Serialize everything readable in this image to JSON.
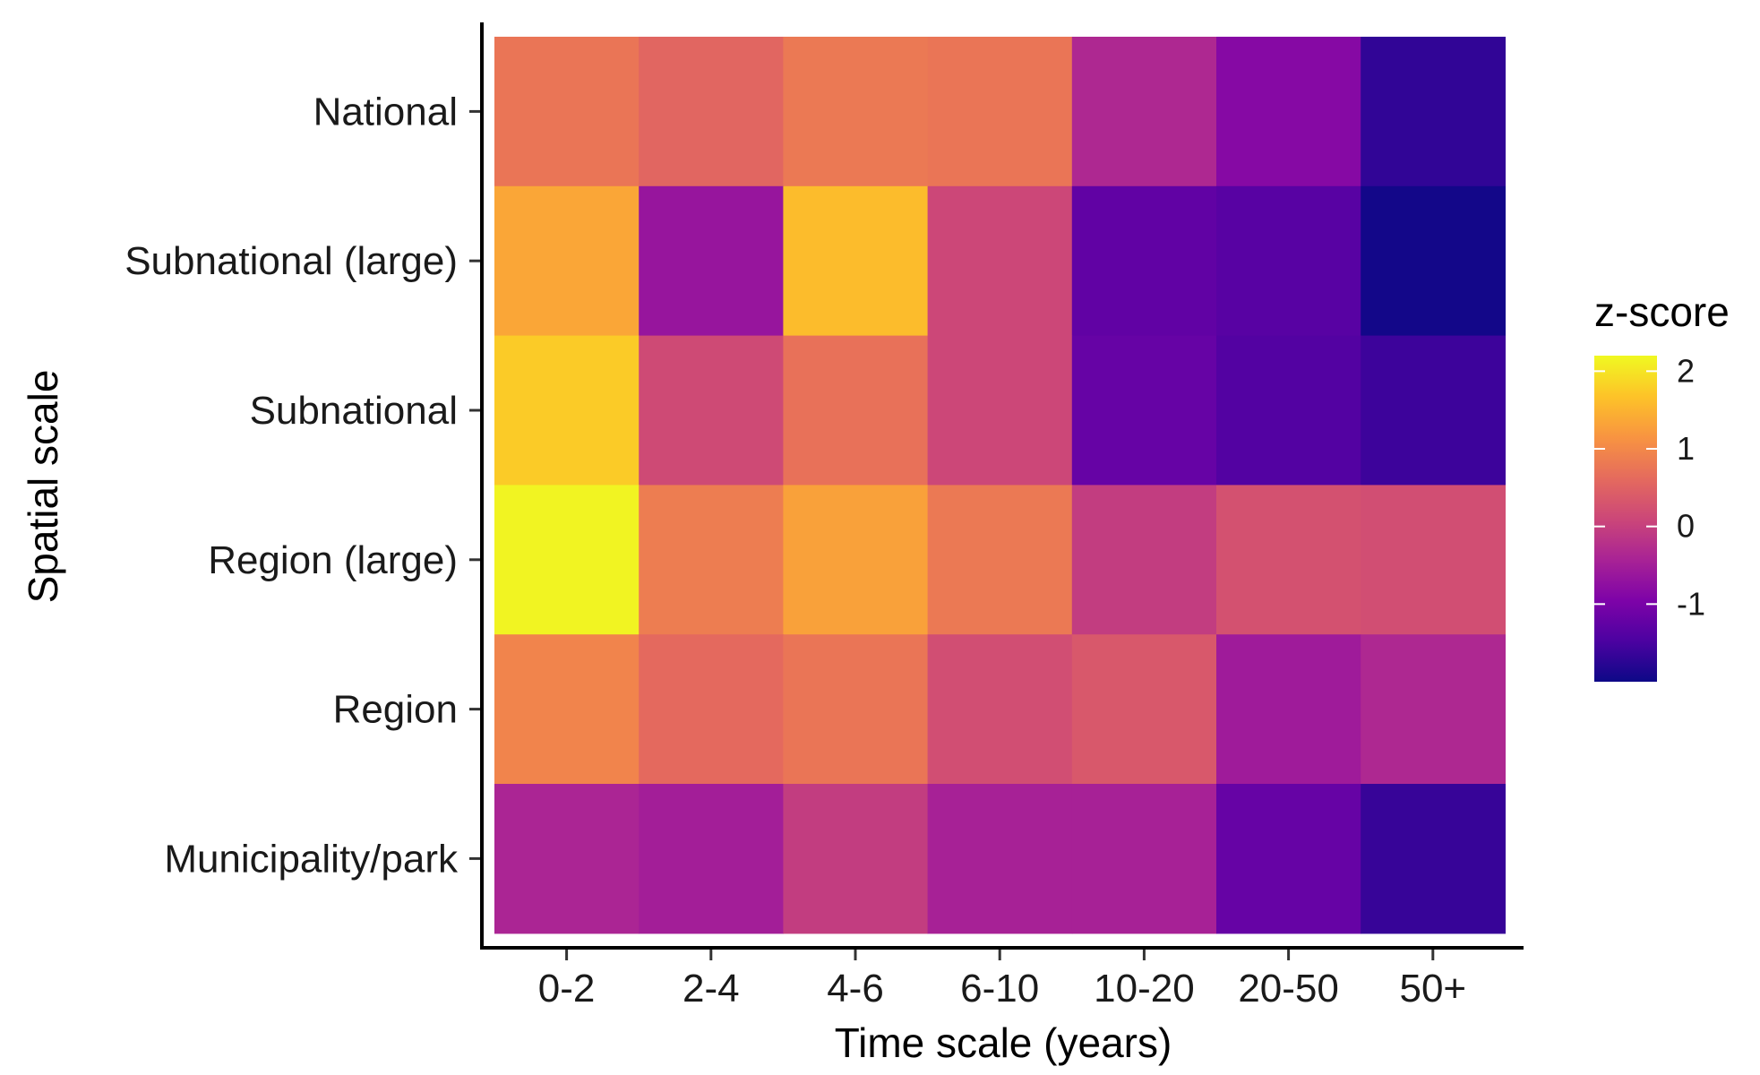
{
  "chart_data": {
    "type": "heatmap",
    "title": "",
    "xlabel": "Time scale (years)",
    "ylabel": "Spatial scale",
    "x_categories": [
      "0-2",
      "2-4",
      "4-6",
      "6-10",
      "10-20",
      "20-50",
      "50+"
    ],
    "y_categories": [
      "National",
      "Subnational (large)",
      "Subnational",
      "Region (large)",
      "Region",
      "Municipality/park"
    ],
    "values": [
      [
        0.75,
        0.55,
        0.8,
        0.75,
        -0.35,
        -0.85,
        -1.7
      ],
      [
        1.35,
        -0.65,
        1.6,
        0.1,
        -1.25,
        -1.35,
        -1.95
      ],
      [
        1.75,
        0.15,
        0.7,
        0.1,
        -1.2,
        -1.4,
        -1.6
      ],
      [
        2.15,
        0.85,
        1.3,
        0.8,
        -0.05,
        0.25,
        0.2
      ],
      [
        0.95,
        0.6,
        0.75,
        0.2,
        0.35,
        -0.55,
        -0.35
      ],
      [
        -0.4,
        -0.5,
        -0.05,
        -0.45,
        -0.45,
        -1.2,
        -1.65
      ]
    ],
    "colorbar": {
      "title": "z-score",
      "ticks": [
        2,
        1,
        0,
        -1
      ],
      "range": [
        -2.0,
        2.2
      ],
      "colormap": "plasma"
    },
    "grid": false
  }
}
